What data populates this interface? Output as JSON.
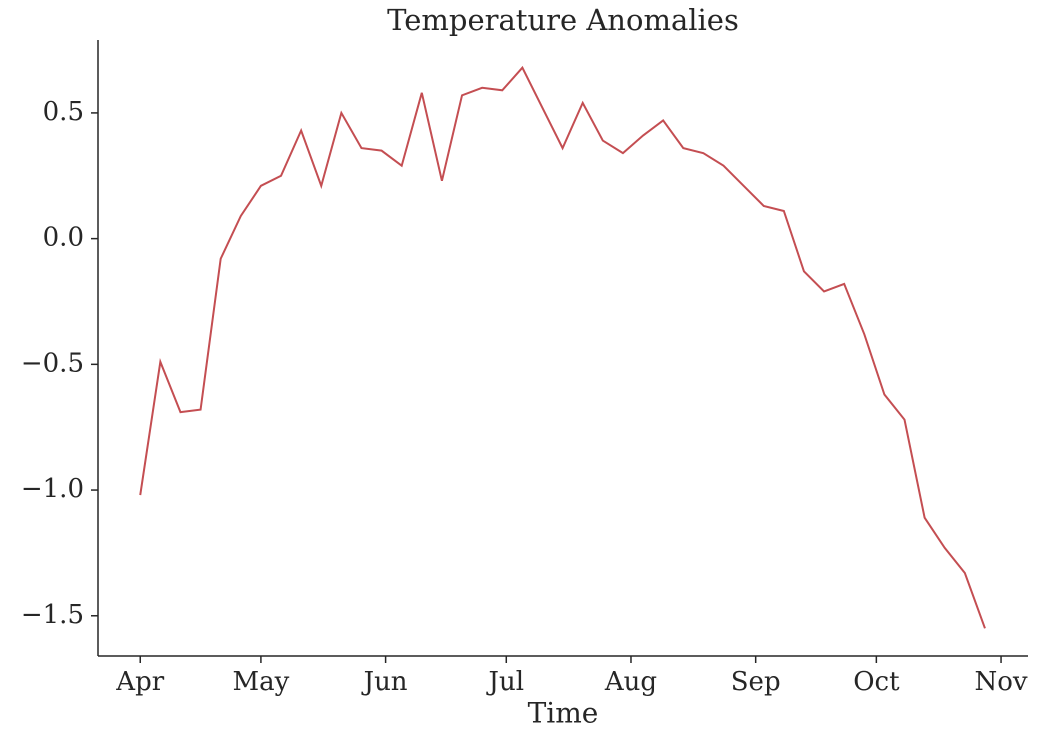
{
  "chart_data": {
    "type": "line",
    "title": "Temperature Anomalies",
    "x_label": "Time",
    "x": [
      0,
      5,
      10,
      15,
      20,
      25,
      30,
      35,
      40,
      45,
      50,
      55,
      60,
      65,
      70,
      75,
      80,
      85,
      90,
      95,
      100,
      105,
      110,
      115,
      120,
      125,
      130,
      135,
      140,
      145,
      150,
      155,
      160,
      165,
      170,
      175,
      180,
      185,
      190,
      195,
      200,
      205,
      210
    ],
    "series": [
      {
        "color": "#c44e52",
        "values": [
          -1.02,
          -0.49,
          -0.69,
          -0.68,
          -0.08,
          0.09,
          0.21,
          0.25,
          0.43,
          0.21,
          0.5,
          0.36,
          0.35,
          0.29,
          0.58,
          0.23,
          0.57,
          0.6,
          0.59,
          0.68,
          0.52,
          0.36,
          0.54,
          0.39,
          0.34,
          0.41,
          0.47,
          0.36,
          0.34,
          0.29,
          0.21,
          0.13,
          0.11,
          -0.13,
          -0.21,
          -0.18,
          -0.38,
          -0.62,
          -0.72,
          -1.11,
          -1.23,
          -1.33,
          -1.55
        ]
      }
    ],
    "xlim": [
      -10.5,
      220.7
    ],
    "xticks": [
      {
        "value": 0,
        "label": "Apr"
      },
      {
        "value": 30,
        "label": "May"
      },
      {
        "value": 61,
        "label": "Jun"
      },
      {
        "value": 91,
        "label": "Jul"
      },
      {
        "value": 122,
        "label": "Aug"
      },
      {
        "value": 153,
        "label": "Sep"
      },
      {
        "value": 183,
        "label": "Oct"
      },
      {
        "value": 214,
        "label": "Nov"
      }
    ],
    "ylim": [
      -1.66,
      0.79
    ],
    "yticks": [
      {
        "value": -1.5,
        "label": "−1.5"
      },
      {
        "value": -1.0,
        "label": "−1.0"
      },
      {
        "value": -0.5,
        "label": "−0.5"
      },
      {
        "value": 0,
        "label": "0.0"
      },
      0.5
    ],
    "grid": false
  }
}
